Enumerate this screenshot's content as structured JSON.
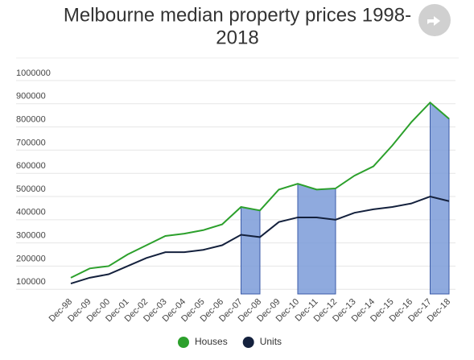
{
  "chart_data": {
    "type": "line",
    "title": [
      "Melbourne median property prices 1998-",
      "2018"
    ],
    "categories": [
      "Dec-98",
      "Dec-09",
      "Dec-00",
      "Dec-01",
      "Dec-02",
      "Dec-03",
      "Dec-04",
      "Dec-05",
      "Dec-06",
      "Dec-07",
      "Dec-08",
      "Dec-09",
      "Dec-10",
      "Dec-11",
      "Dec-12",
      "Dec-13",
      "Dec-14",
      "Dec-15",
      "Dec-16",
      "Dec-17",
      "Dec-18"
    ],
    "series": [
      {
        "name": "Houses",
        "color": "#2ca02c",
        "values": [
          150000,
          190000,
          200000,
          250000,
          290000,
          330000,
          340000,
          355000,
          380000,
          455000,
          440000,
          530000,
          555000,
          530000,
          535000,
          590000,
          630000,
          720000,
          820000,
          905000,
          835000
        ]
      },
      {
        "name": "Units",
        "color": "#14213d",
        "values": [
          125000,
          150000,
          165000,
          200000,
          235000,
          260000,
          260000,
          270000,
          290000,
          335000,
          325000,
          390000,
          410000,
          410000,
          400000,
          430000,
          445000,
          455000,
          470000,
          500000,
          480000
        ]
      }
    ],
    "ylim": [
      80000,
      1000000
    ],
    "yticks": [
      100000,
      200000,
      300000,
      400000,
      500000,
      600000,
      700000,
      800000,
      900000,
      1000000
    ],
    "grid": true,
    "legend": "bottom"
  }
}
